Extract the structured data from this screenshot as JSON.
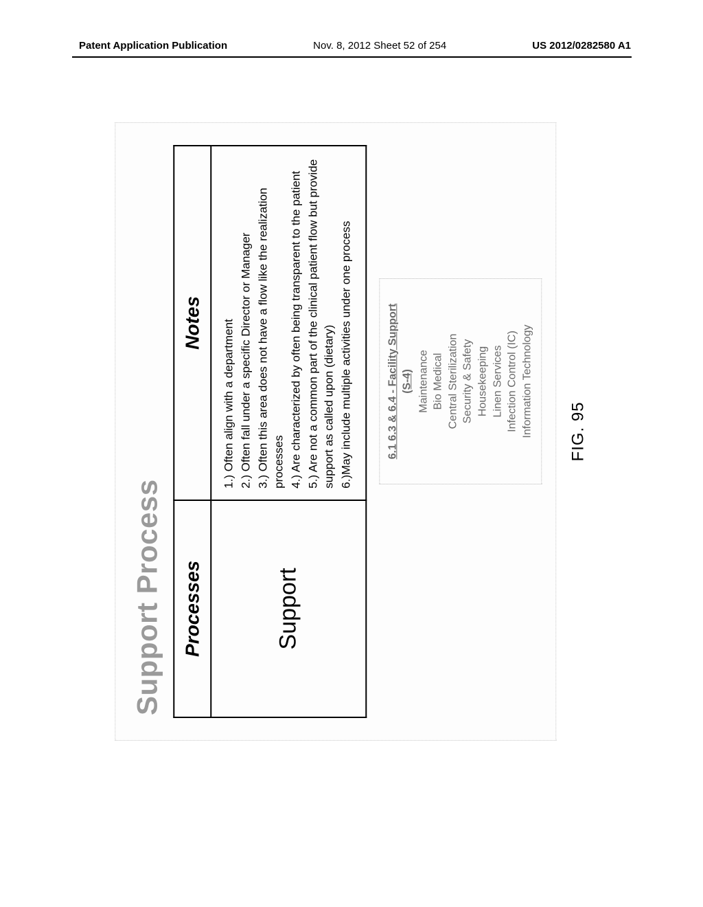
{
  "header": {
    "left": "Patent Application Publication",
    "center": "Nov. 8, 2012  Sheet 52 of 254",
    "right": "US 2012/0282580 A1"
  },
  "figure": {
    "title": "Support Process",
    "table": {
      "col1_header": "Processes",
      "col2_header": "Notes",
      "row1_label": "Support",
      "notes": [
        "1.) Often align with a department",
        "2.) Often fall under a specific Director or Manager",
        "3.) Often this area does not have a flow like the realization processes",
        "4.) Are characterized by often being transparent to the patient",
        "5.) Are not a common part of the clinical patient flow but provide support as called upon (dietary)",
        "6.)May include multiple activities under one process"
      ]
    },
    "facility_box": {
      "title": "6.1 6.3 & 6.4 - Facility Support",
      "subtitle": "(S-4)",
      "items": [
        "Maintenance",
        "Bio Medical",
        "Central Sterilization",
        "Security & Safety",
        "Housekeeping",
        "Linen Services",
        "Infection Control (IC)",
        "Information Technology"
      ]
    },
    "caption": "FIG. 95"
  }
}
